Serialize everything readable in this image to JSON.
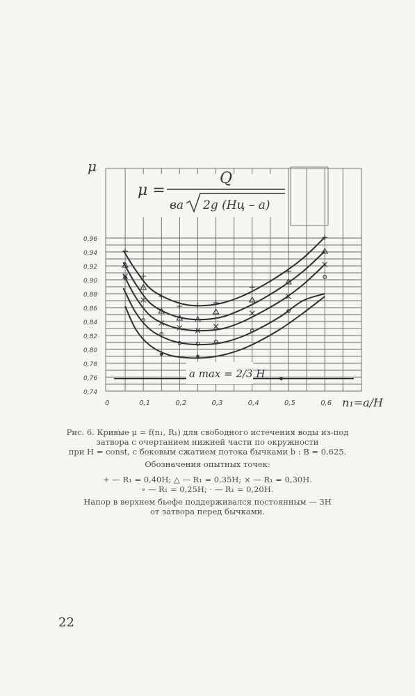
{
  "chart_data": {
    "type": "scatter",
    "y_axis_label": "μ",
    "x_axis_label": "n₁=a/H",
    "formula": {
      "lhs": "μ =",
      "numerator": "Q",
      "denominator_prefix": "вa",
      "radicand": "2g (Hц – a)"
    },
    "annotation": "a max = 2/3 H",
    "x_ticks": [
      "0",
      "0,1",
      "0,2",
      "0,3",
      "0,4",
      "0,5",
      "0,6"
    ],
    "y_ticks": [
      "0,96",
      "0,94",
      "0,92",
      "0,90",
      "0,88",
      "0,86",
      "0,84",
      "0,82",
      "0,80",
      "0,78",
      "0,76",
      "0,74"
    ],
    "xlim": [
      0,
      0.7
    ],
    "ylim": [
      0.74,
      0.97
    ],
    "grid": true,
    "series": [
      {
        "marker": "plus",
        "points": [
          [
            0.05,
            0.941
          ],
          [
            0.1,
            0.905
          ],
          [
            0.15,
            0.876
          ],
          [
            0.2,
            0.862
          ],
          [
            0.25,
            0.863
          ],
          [
            0.3,
            0.867
          ],
          [
            0.4,
            0.889
          ],
          [
            0.5,
            0.912
          ],
          [
            0.6,
            0.961
          ]
        ],
        "curve": [
          [
            0.045,
            0.942
          ],
          [
            0.08,
            0.913
          ],
          [
            0.12,
            0.887
          ],
          [
            0.17,
            0.872
          ],
          [
            0.22,
            0.864
          ],
          [
            0.27,
            0.863
          ],
          [
            0.32,
            0.867
          ],
          [
            0.37,
            0.876
          ],
          [
            0.42,
            0.889
          ],
          [
            0.48,
            0.908
          ],
          [
            0.54,
            0.931
          ],
          [
            0.6,
            0.961
          ]
        ]
      },
      {
        "marker": "triangle",
        "points": [
          [
            0.05,
            0.921
          ],
          [
            0.1,
            0.889
          ],
          [
            0.15,
            0.855
          ],
          [
            0.2,
            0.845
          ],
          [
            0.25,
            0.843
          ],
          [
            0.3,
            0.854
          ],
          [
            0.4,
            0.871
          ],
          [
            0.5,
            0.897
          ],
          [
            0.6,
            0.941
          ]
        ],
        "curve": [
          [
            0.045,
            0.925
          ],
          [
            0.08,
            0.893
          ],
          [
            0.12,
            0.866
          ],
          [
            0.17,
            0.851
          ],
          [
            0.22,
            0.844
          ],
          [
            0.27,
            0.843
          ],
          [
            0.32,
            0.847
          ],
          [
            0.37,
            0.857
          ],
          [
            0.42,
            0.87
          ],
          [
            0.48,
            0.889
          ],
          [
            0.54,
            0.912
          ],
          [
            0.6,
            0.941
          ]
        ]
      },
      {
        "marker": "cross",
        "points": [
          [
            0.05,
            0.905
          ],
          [
            0.1,
            0.871
          ],
          [
            0.15,
            0.838
          ],
          [
            0.2,
            0.831
          ],
          [
            0.25,
            0.827
          ],
          [
            0.3,
            0.833
          ],
          [
            0.4,
            0.852
          ],
          [
            0.5,
            0.876
          ],
          [
            0.6,
            0.922
          ]
        ],
        "curve": [
          [
            0.045,
            0.908
          ],
          [
            0.08,
            0.874
          ],
          [
            0.12,
            0.848
          ],
          [
            0.17,
            0.834
          ],
          [
            0.22,
            0.828
          ],
          [
            0.27,
            0.827
          ],
          [
            0.32,
            0.83
          ],
          [
            0.37,
            0.839
          ],
          [
            0.42,
            0.852
          ],
          [
            0.48,
            0.87
          ],
          [
            0.54,
            0.893
          ],
          [
            0.6,
            0.922
          ]
        ]
      },
      {
        "marker": "circle",
        "points": [
          [
            0.05,
            0.903
          ],
          [
            0.1,
            0.842
          ],
          [
            0.15,
            0.822
          ],
          [
            0.2,
            0.809
          ],
          [
            0.25,
            0.808
          ],
          [
            0.3,
            0.811
          ],
          [
            0.4,
            0.827
          ],
          [
            0.5,
            0.855
          ],
          [
            0.6,
            0.904
          ]
        ],
        "curve": [
          [
            0.045,
            0.888
          ],
          [
            0.08,
            0.852
          ],
          [
            0.12,
            0.828
          ],
          [
            0.17,
            0.814
          ],
          [
            0.22,
            0.808
          ],
          [
            0.27,
            0.807
          ],
          [
            0.32,
            0.81
          ],
          [
            0.37,
            0.818
          ],
          [
            0.42,
            0.83
          ],
          [
            0.48,
            0.848
          ],
          [
            0.54,
            0.87
          ],
          [
            0.6,
            0.88
          ]
        ]
      },
      {
        "marker": "dot",
        "points": [
          [
            0.15,
            0.793
          ],
          [
            0.25,
            0.79
          ],
          [
            0.48,
            0.758
          ]
        ],
        "curve": [
          [
            0.05,
            0.862
          ],
          [
            0.08,
            0.828
          ],
          [
            0.12,
            0.805
          ],
          [
            0.17,
            0.792
          ],
          [
            0.22,
            0.788
          ],
          [
            0.27,
            0.788
          ],
          [
            0.32,
            0.792
          ],
          [
            0.37,
            0.8
          ],
          [
            0.42,
            0.812
          ],
          [
            0.48,
            0.83
          ],
          [
            0.54,
            0.852
          ],
          [
            0.6,
            0.876
          ]
        ]
      }
    ],
    "limit_line": {
      "y": 0.758,
      "x_range": [
        0.0,
        0.68
      ]
    }
  },
  "caption": {
    "line1": "Рис. 6. Кривые μ = f(n₁, R₁) для свободного истечения воды из-под",
    "line2": "затвора с очертанием нижней части по окружности",
    "line3": "при H = const, с боковым сжатием потока бычками b : B = 0,625.",
    "legend_title": "Обозначения опытных точек:",
    "legend_line1": "+ — R₁ = 0,40H; △ — R₁ = 0,35H; × — R₁ = 0,30H.",
    "legend_line2": "∘ — R₁ = 0,25H; · — R₁ = 0,20H.",
    "note_line1": "Напор в верхнем бьефе поддерживался постоянным — 3H",
    "note_line2": "от затвора перед бычками."
  },
  "page_number": "22"
}
